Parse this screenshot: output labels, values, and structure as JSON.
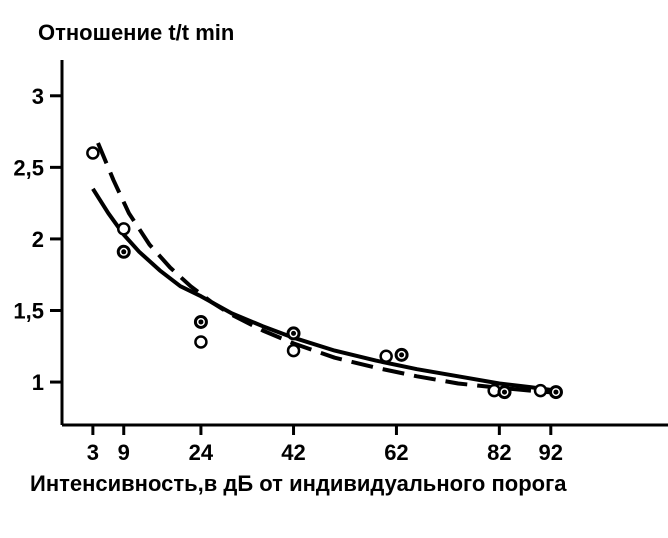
{
  "chart_data": {
    "type": "scatter",
    "ylabel": {
      "main": "Отношение t/",
      "sub": "t min"
    },
    "xlabel": "Интенсивность,в дБ от индивидуального порога",
    "xlim": [
      -3,
      114
    ],
    "ylim": [
      0.7,
      3.25
    ],
    "x_ticks": [
      3,
      9,
      24,
      42,
      62,
      82,
      92
    ],
    "x_tick_labels": [
      "3",
      "9",
      "24",
      "42",
      "62",
      "82",
      "92"
    ],
    "y_ticks": [
      1,
      1.5,
      2,
      2.5,
      3
    ],
    "y_tick_labels": [
      "1",
      "1,5",
      "2",
      "2,5",
      "3"
    ],
    "grid": false,
    "series": [
      {
        "style": "solid",
        "marker": "open-circle",
        "points": [
          [
            3,
            2.6
          ],
          [
            9,
            2.07
          ],
          [
            24,
            1.28
          ],
          [
            42,
            1.22
          ],
          [
            60,
            1.18
          ],
          [
            81,
            0.94
          ],
          [
            83,
            0.93
          ],
          [
            90,
            0.94
          ],
          [
            93,
            0.93
          ]
        ],
        "curve": [
          [
            3,
            2.35
          ],
          [
            6,
            2.18
          ],
          [
            9,
            2.03
          ],
          [
            12,
            1.91
          ],
          [
            16,
            1.78
          ],
          [
            20,
            1.67
          ],
          [
            24,
            1.6
          ],
          [
            30,
            1.48
          ],
          [
            36,
            1.39
          ],
          [
            42,
            1.31
          ],
          [
            50,
            1.22
          ],
          [
            58,
            1.15
          ],
          [
            66,
            1.09
          ],
          [
            74,
            1.04
          ],
          [
            82,
            0.99
          ],
          [
            88,
            0.965
          ],
          [
            93,
            0.94
          ]
        ]
      },
      {
        "style": "dashed",
        "marker": "filled-circle",
        "points": [
          [
            9,
            1.91
          ],
          [
            24,
            1.42
          ],
          [
            42,
            1.34
          ],
          [
            63,
            1.19
          ],
          [
            83,
            0.93
          ],
          [
            93,
            0.93
          ]
        ],
        "curve": [
          [
            4,
            2.67
          ],
          [
            7,
            2.41
          ],
          [
            10,
            2.18
          ],
          [
            14,
            1.96
          ],
          [
            18,
            1.8
          ],
          [
            22,
            1.67
          ],
          [
            26,
            1.56
          ],
          [
            30,
            1.47
          ],
          [
            36,
            1.36
          ],
          [
            42,
            1.27
          ],
          [
            50,
            1.17
          ],
          [
            58,
            1.1
          ],
          [
            66,
            1.04
          ],
          [
            74,
            0.99
          ],
          [
            82,
            0.96
          ],
          [
            88,
            0.94
          ],
          [
            93,
            0.925
          ]
        ]
      }
    ]
  }
}
